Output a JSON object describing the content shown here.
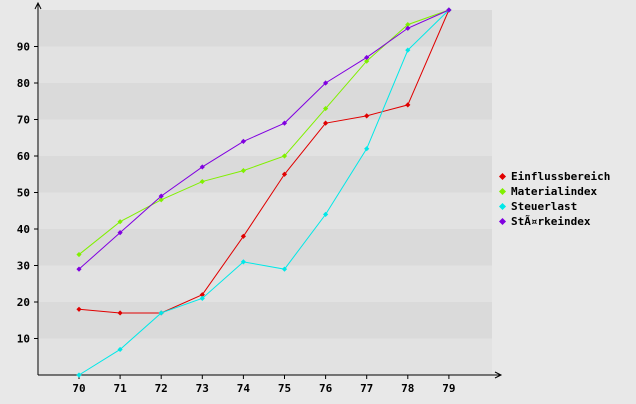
{
  "chart_data": {
    "type": "line",
    "x": [
      "70",
      "71",
      "72",
      "73",
      "74",
      "75",
      "76",
      "77",
      "78",
      "79"
    ],
    "yticks": [
      "10",
      "20",
      "30",
      "40",
      "50",
      "60",
      "70",
      "80",
      "90"
    ],
    "ylim": [
      0,
      100
    ],
    "grid": "horizontal bands",
    "legend_placement": "right",
    "series": [
      {
        "name": "Einflussbereich",
        "color": "#e00000",
        "values": [
          18,
          17,
          17,
          22,
          38,
          55,
          69,
          71,
          74,
          100
        ]
      },
      {
        "name": "Materialindex",
        "color": "#80f000",
        "values": [
          33,
          42,
          48,
          53,
          56,
          60,
          73,
          86,
          96,
          100
        ]
      },
      {
        "name": "Steuerlast",
        "color": "#00e8e8",
        "values": [
          0,
          7,
          17,
          21,
          31,
          29,
          44,
          62,
          89,
          100
        ]
      },
      {
        "name": "StÃ¤rkeindex",
        "color": "#8000e0",
        "values": [
          29,
          39,
          49,
          57,
          64,
          69,
          80,
          87,
          95,
          100
        ]
      }
    ]
  }
}
